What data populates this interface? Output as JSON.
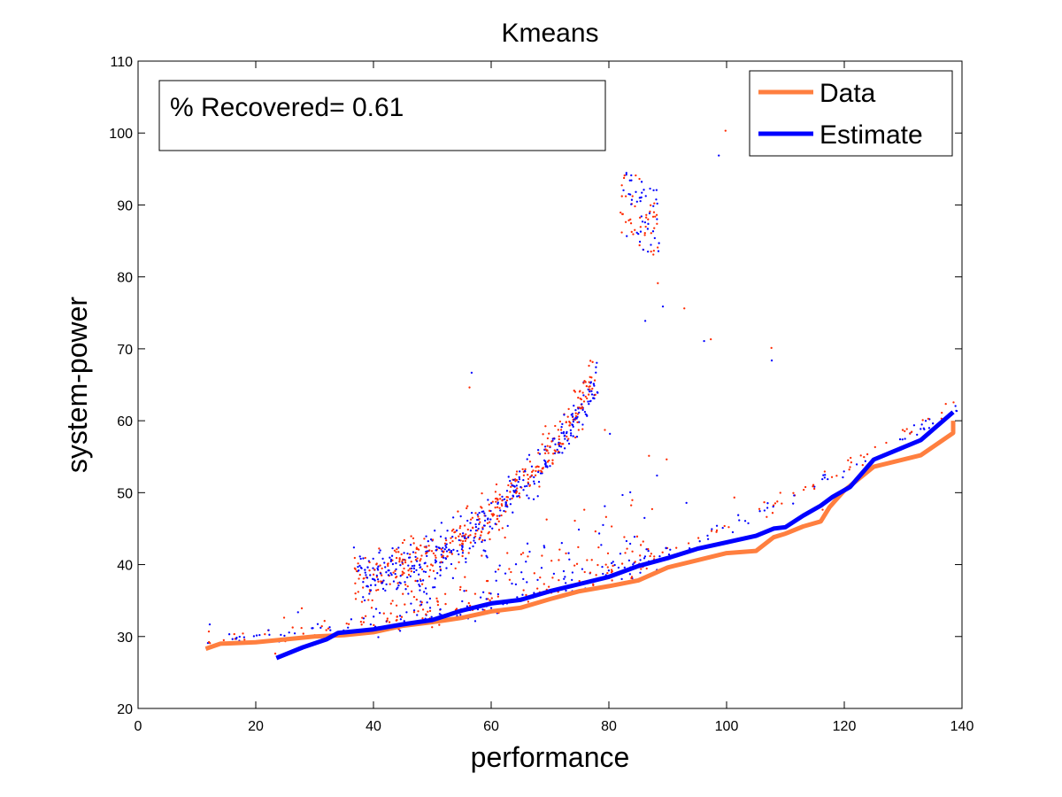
{
  "chart_data": {
    "type": "line",
    "title": "Kmeans",
    "xlabel": "performance",
    "ylabel": "system-power",
    "xlim": [
      0,
      140
    ],
    "ylim": [
      20,
      110
    ],
    "xticks": [
      0,
      20,
      40,
      60,
      80,
      100,
      120,
      140
    ],
    "yticks": [
      20,
      30,
      40,
      50,
      60,
      70,
      80,
      90,
      100,
      110
    ],
    "grid": false,
    "legend_position": "top-right",
    "annotation": "% Recovered= 0.61",
    "colors": {
      "data": "#ff7f3f",
      "estimate": "#0000ff",
      "data_points": "#ff2a00"
    },
    "series": [
      {
        "name": "Data",
        "color": "#ff7f3f",
        "x": [
          11.5,
          14,
          20,
          25,
          30,
          35,
          40,
          45,
          50,
          55,
          60,
          65,
          70,
          75,
          80,
          85,
          90,
          95,
          100,
          105,
          108,
          110,
          113,
          116,
          117.5,
          120,
          125,
          133,
          138.5,
          138.5
        ],
        "y": [
          28.3,
          29.0,
          29.2,
          29.6,
          30.0,
          30.2,
          30.6,
          31.5,
          32.0,
          32.6,
          33.5,
          34.0,
          35.2,
          36.3,
          37.0,
          37.8,
          39.6,
          40.6,
          41.6,
          41.9,
          43.8,
          44.3,
          45.3,
          46.0,
          48.0,
          50.3,
          53.6,
          55.2,
          58.3,
          60.0
        ]
      },
      {
        "name": "Estimate",
        "color": "#0000ff",
        "x": [
          23.5,
          28,
          32,
          34,
          40,
          45,
          50,
          55,
          60,
          65,
          70,
          75,
          80,
          85,
          90,
          95,
          100,
          105,
          108,
          110,
          113,
          116,
          118,
          121,
          125,
          133,
          138.5
        ],
        "y": [
          27.0,
          28.5,
          29.6,
          30.5,
          31.0,
          31.7,
          32.3,
          33.6,
          34.6,
          35.1,
          36.3,
          37.3,
          38.3,
          39.8,
          40.9,
          42.2,
          43.1,
          44.0,
          45.0,
          45.2,
          46.8,
          48.2,
          49.4,
          50.8,
          54.6,
          57.3,
          61.2
        ]
      }
    ]
  }
}
